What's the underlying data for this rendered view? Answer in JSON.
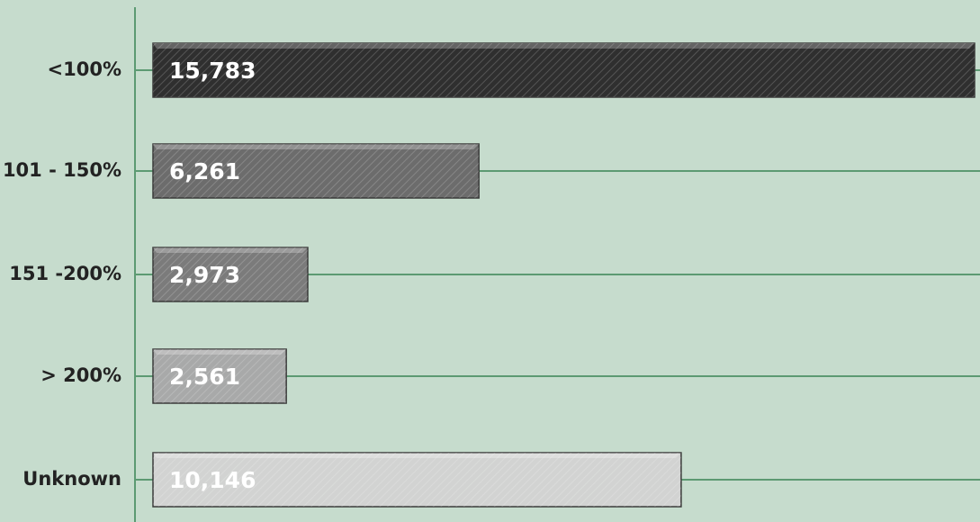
{
  "chart_data": {
    "type": "bar",
    "orientation": "horizontal",
    "categories": [
      "<100%",
      "101 - 150%",
      "151 -200%",
      "> 200%",
      "Unknown"
    ],
    "values": [
      15783,
      6261,
      2973,
      2561,
      10146
    ],
    "value_labels": [
      "15,783",
      "6,261",
      "2,973",
      "2,561",
      "10,146"
    ],
    "colors": [
      "#2f2f2f",
      "#6c6c6c",
      "#7b7b7b",
      "#a8a9a9",
      "#d2d3d2"
    ]
  }
}
